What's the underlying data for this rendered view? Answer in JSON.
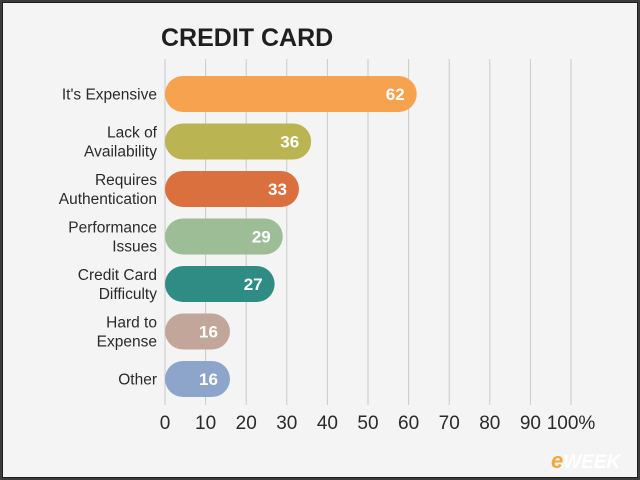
{
  "chart_data": {
    "type": "bar",
    "orientation": "horizontal",
    "title": "CREDIT CARD",
    "categories": [
      [
        "It's Expensive"
      ],
      [
        "Lack of",
        "Availability"
      ],
      [
        "Requires",
        "Authentication"
      ],
      [
        "Performance",
        "Issues"
      ],
      [
        "Credit Card",
        "Difficulty"
      ],
      [
        "Hard to",
        "Expense"
      ],
      [
        "Other"
      ]
    ],
    "values": [
      62,
      36,
      33,
      29,
      27,
      16,
      16
    ],
    "colors": [
      "#f7a24f",
      "#bab452",
      "#d9703e",
      "#9dbd97",
      "#2f8c84",
      "#c1a699",
      "#8da5cb"
    ],
    "x_ticks": [
      "0",
      "10",
      "20",
      "30",
      "40",
      "50",
      "60",
      "70",
      "80",
      "90",
      "100%"
    ],
    "xlim": [
      0,
      100
    ],
    "grid": "vertical"
  },
  "watermark": "eWEEK"
}
